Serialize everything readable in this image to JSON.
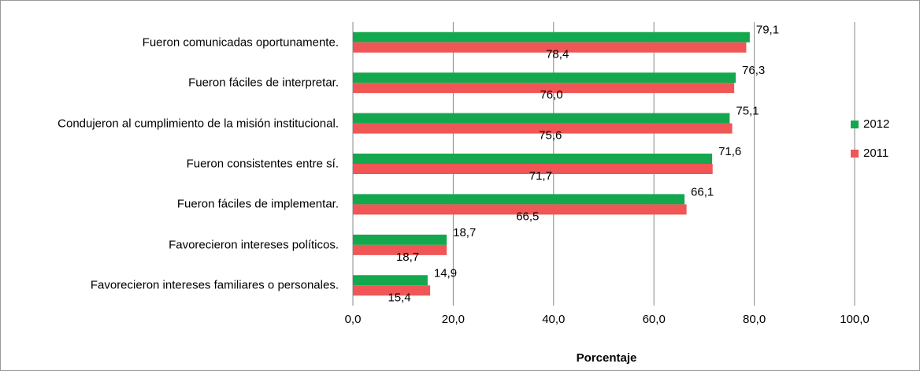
{
  "chart_data": {
    "type": "bar",
    "orientation": "horizontal",
    "x_label": "Porcentaje",
    "categories": [
      "Fueron comunicadas  oportunamente.",
      "Fueron fáciles  de interpretar.",
      "Condujeron al cumplimiento  de la misión institucional.",
      "Fueron consistentes  entre sí.",
      "Fueron fáciles  de implementar.",
      "Favorecieron intereses políticos.",
      "Favorecieron intereses familiares  o personales."
    ],
    "series": [
      {
        "name": "2012",
        "color": "#14a84e",
        "values": [
          79.1,
          76.3,
          75.1,
          71.6,
          66.1,
          18.7,
          14.9
        ],
        "value_labels": [
          "79,1",
          "76,3",
          "75,1",
          "71,6",
          "66,1",
          "18,7",
          "14,9"
        ]
      },
      {
        "name": "2011",
        "color": "#f05656",
        "values": [
          78.4,
          76.0,
          75.6,
          71.7,
          66.5,
          18.7,
          15.4
        ],
        "value_labels": [
          "78,4",
          "76,0",
          "75,6",
          "71,7",
          "66,5",
          "18,7",
          "15,4"
        ]
      }
    ],
    "xlim": [
      0,
      100
    ],
    "xticks": [
      {
        "value": 0,
        "label": "0,0"
      },
      {
        "value": 20,
        "label": "20,0"
      },
      {
        "value": 40,
        "label": "40,0"
      },
      {
        "value": 60,
        "label": "60,0"
      },
      {
        "value": 80,
        "label": "80,0"
      },
      {
        "value": 100,
        "label": "100,0"
      }
    ],
    "grid": true,
    "legend": "right"
  }
}
